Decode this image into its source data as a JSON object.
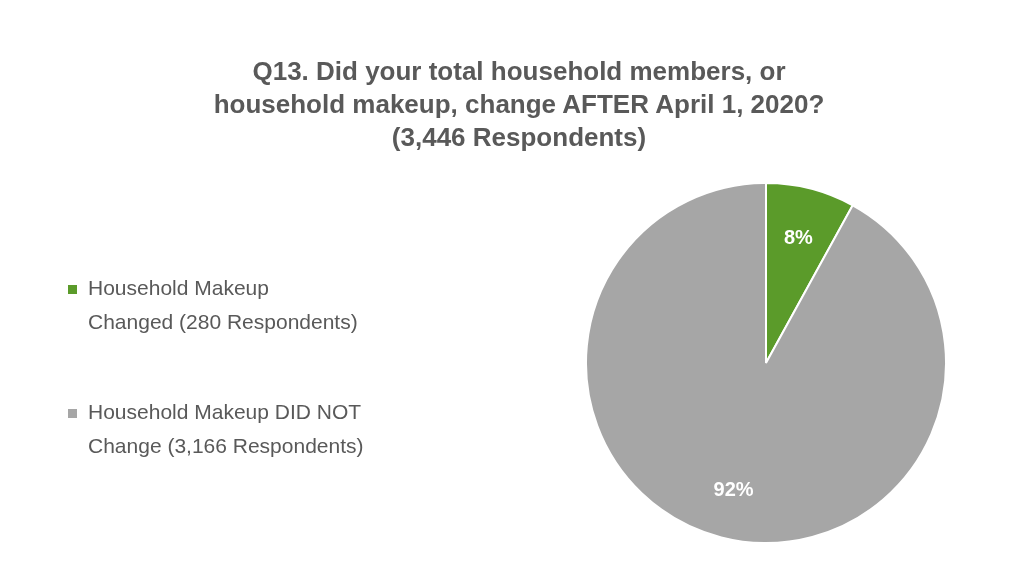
{
  "chart_data": {
    "type": "pie",
    "title": "Q13. Did your total household members, or\nhousehold makeup, change AFTER April 1, 2020?\n(3,446 Respondents)",
    "categories": [
      "Household Makeup\nChanged (280 Respondents)",
      "Household Makeup DID NOT\nChange (3,166 Respondents)"
    ],
    "values": [
      8,
      92
    ],
    "colors": [
      "#5b9b2a",
      "#a6a6a6"
    ],
    "value_labels": [
      "8%",
      "92%"
    ],
    "legend": "left"
  }
}
